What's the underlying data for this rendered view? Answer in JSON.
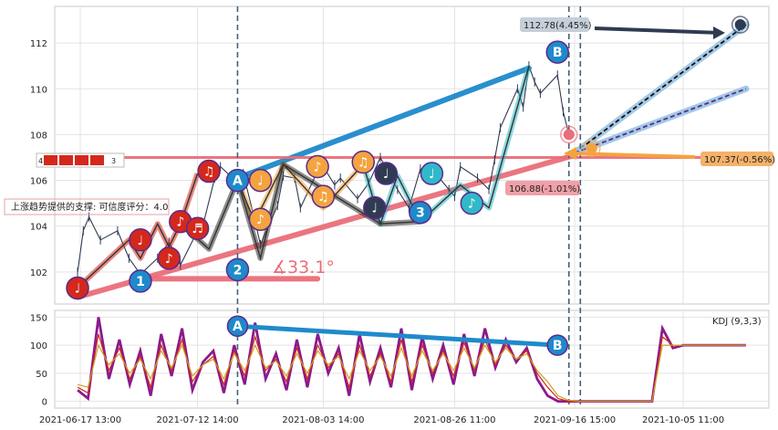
{
  "chart_data": [
    {
      "type": "line",
      "panel": "price",
      "ylim": [
        100.6,
        113.6
      ],
      "yticks": [
        102,
        104,
        106,
        108,
        110,
        112
      ],
      "x_range": [
        "2021-06-17",
        "2021-10-20"
      ],
      "grid": true,
      "series": [
        {
          "role": "price-candles",
          "color": "#2f3b52",
          "points": [
            [
              "2021-06-21",
              102.0
            ],
            [
              "2021-06-22",
              103.8
            ],
            [
              "2021-06-23",
              104.4
            ],
            [
              "2021-06-25",
              103.4
            ],
            [
              "2021-06-28",
              103.8
            ],
            [
              "2021-06-30",
              102.6
            ],
            [
              "2021-07-02",
              101.9
            ],
            [
              "2021-07-05",
              102.6
            ],
            [
              "2021-07-07",
              103.3
            ],
            [
              "2021-07-09",
              102.3
            ],
            [
              "2021-07-12",
              103.8
            ],
            [
              "2021-07-13",
              104.1
            ],
            [
              "2021-07-15",
              106.1
            ],
            [
              "2021-07-16",
              106.6
            ],
            [
              "2021-07-19",
              105.9
            ],
            [
              "2021-07-20",
              106.3
            ],
            [
              "2021-07-22",
              104.3
            ],
            [
              "2021-07-23",
              103.2
            ],
            [
              "2021-07-26",
              104.9
            ],
            [
              "2021-07-27",
              106.2
            ],
            [
              "2021-07-29",
              106.1
            ],
            [
              "2021-07-30",
              104.8
            ],
            [
              "2021-08-02",
              106.4
            ],
            [
              "2021-08-03",
              106.6
            ],
            [
              "2021-08-05",
              105.8
            ],
            [
              "2021-08-06",
              106.1
            ],
            [
              "2021-08-09",
              105.2
            ],
            [
              "2021-08-11",
              105.9
            ],
            [
              "2021-08-13",
              107.0
            ],
            [
              "2021-08-16",
              105.6
            ],
            [
              "2021-08-18",
              104.8
            ],
            [
              "2021-08-20",
              106.5
            ],
            [
              "2021-08-23",
              106.2
            ],
            [
              "2021-08-25",
              105.6
            ],
            [
              "2021-08-26",
              105.3
            ],
            [
              "2021-08-27",
              106.6
            ],
            [
              "2021-08-30",
              106.1
            ],
            [
              "2021-09-01",
              105.6
            ],
            [
              "2021-09-02",
              106.9
            ],
            [
              "2021-09-03",
              108.3
            ],
            [
              "2021-09-06",
              110.0
            ],
            [
              "2021-09-07",
              109.2
            ],
            [
              "2021-09-08",
              111.0
            ],
            [
              "2021-09-09",
              110.3
            ],
            [
              "2021-09-10",
              109.8
            ],
            [
              "2021-09-13",
              110.6
            ],
            [
              "2021-09-14",
              109.0
            ],
            [
              "2021-09-15",
              108.0
            ]
          ]
        }
      ],
      "patterns": [
        {
          "type": "zigzag",
          "role": "red-wave",
          "color": "#d4281c",
          "points": [
            [
              "2021-06-21",
              101.3
            ],
            [
              "2021-06-30",
              103.4
            ],
            [
              "2021-07-02",
              102.6
            ],
            [
              "2021-07-05",
              104.1
            ],
            [
              "2021-07-07",
              103.1
            ],
            [
              "2021-07-09",
              104.1
            ],
            [
              "2021-07-12",
              106.3
            ]
          ]
        },
        {
          "type": "zigzag",
          "role": "orange-wave",
          "color": "#f5a340",
          "points": [
            [
              "2021-07-19",
              106.0
            ],
            [
              "2021-07-22",
              104.2
            ],
            [
              "2021-07-27",
              106.7
            ],
            [
              "2021-08-03",
              104.8
            ],
            [
              "2021-08-10",
              106.7
            ]
          ]
        },
        {
          "type": "zigzag",
          "role": "teal-wave",
          "color": "#31b9c9",
          "points": [
            [
              "2021-08-10",
              106.7
            ],
            [
              "2021-08-13",
              104.1
            ],
            [
              "2021-08-16",
              106.2
            ],
            [
              "2021-08-20",
              104.2
            ],
            [
              "2021-08-27",
              105.8
            ],
            [
              "2021-09-01",
              104.8
            ],
            [
              "2021-09-08",
              111.0
            ]
          ]
        },
        {
          "type": "zigzag",
          "role": "main-swing",
          "color": "#333333",
          "points": [
            [
              "2021-07-09",
              104.1
            ],
            [
              "2021-07-14",
              103.0
            ],
            [
              "2021-07-19",
              106.0
            ],
            [
              "2021-07-23",
              102.6
            ],
            [
              "2021-07-27",
              106.7
            ],
            [
              "2021-08-13",
              104.1
            ],
            [
              "2021-08-20",
              104.2
            ]
          ]
        }
      ],
      "trendlines": [
        {
          "role": "resistance",
          "color": "#1f8acb",
          "from": [
            "2021-07-19",
            106.1
          ],
          "to": [
            "2021-09-08",
            110.9
          ]
        },
        {
          "role": "support",
          "color": "#ea6e7a",
          "from": [
            "2021-06-21",
            100.9
          ],
          "to": [
            "2021-09-16",
            107.1
          ]
        },
        {
          "role": "horizontal",
          "color": "#ea6e7a",
          "from": [
            "2021-06-20",
            107.0
          ],
          "to": [
            "2021-10-20",
            107.0
          ]
        },
        {
          "role": "base-line",
          "color": "#ea6e7a",
          "from": [
            "2021-07-03",
            101.7
          ],
          "to": [
            "2021-08-02",
            101.7
          ]
        },
        {
          "role": "projection-up",
          "color": "#9fc7e6",
          "from": [
            "2021-09-16",
            107.2
          ],
          "to": [
            "2021-10-16",
            112.8
          ],
          "dashed": true
        },
        {
          "role": "projection-mid",
          "color": "#9fc7e6",
          "from": [
            "2021-09-16",
            107.2
          ],
          "to": [
            "2021-10-16",
            110.0
          ],
          "dashed": true
        }
      ],
      "vlines": [
        "2021-07-19",
        "2021-09-15",
        "2021-09-17"
      ],
      "markers": [
        {
          "label": "♩",
          "color": "#d4281c",
          "x": "2021-06-21",
          "y": 101.3
        },
        {
          "label": "1",
          "color": "#1f8acb",
          "x": "2021-07-02",
          "y": 101.6
        },
        {
          "label": "♪",
          "color": "#d4281c",
          "x": "2021-07-07",
          "y": 102.6
        },
        {
          "label": "♩",
          "color": "#d4281c",
          "x": "2021-07-02",
          "y": 103.4
        },
        {
          "label": "♪",
          "color": "#d4281c",
          "x": "2021-07-09",
          "y": 104.2
        },
        {
          "label": "♬",
          "color": "#d4281c",
          "x": "2021-07-12",
          "y": 103.9
        },
        {
          "label": "♫",
          "color": "#d4281c",
          "x": "2021-07-14",
          "y": 106.4
        },
        {
          "label": "A",
          "color": "#1f8acb",
          "x": "2021-07-19",
          "y": 106.0
        },
        {
          "label": "2",
          "color": "#1f8acb",
          "x": "2021-07-19",
          "y": 102.1
        },
        {
          "label": "♩",
          "color": "#f5a340",
          "x": "2021-07-23",
          "y": 106.0
        },
        {
          "label": "♪",
          "color": "#f5a340",
          "x": "2021-07-23",
          "y": 104.3
        },
        {
          "label": "♪",
          "color": "#f5a340",
          "x": "2021-08-02",
          "y": 106.6
        },
        {
          "label": "♫",
          "color": "#f5a340",
          "x": "2021-08-03",
          "y": 105.3
        },
        {
          "label": "♫",
          "color": "#f5a340",
          "x": "2021-08-10",
          "y": 106.8
        },
        {
          "label": "♩",
          "color": "#2f3b52",
          "x": "2021-08-12",
          "y": 104.8
        },
        {
          "label": "♩",
          "color": "#2f3b52",
          "x": "2021-08-14",
          "y": 106.3
        },
        {
          "label": "3",
          "color": "#1f8acb",
          "x": "2021-08-20",
          "y": 104.6
        },
        {
          "label": "♩",
          "color": "#31b9c9",
          "x": "2021-08-22",
          "y": 106.3
        },
        {
          "label": "♪",
          "color": "#31b9c9",
          "x": "2021-08-29",
          "y": 105.0
        },
        {
          "label": "B",
          "color": "#1f8acb",
          "x": "2021-09-13",
          "y": 111.6
        }
      ],
      "small_markers": [
        {
          "color": "#ea6e7a",
          "x": "2021-09-15",
          "y": 108.0
        },
        {
          "color": "#f5a340",
          "x": "2021-09-19",
          "y": 107.4
        },
        {
          "color": "#2f3b52",
          "x": "2021-10-15",
          "y": 112.8
        }
      ],
      "annotations": {
        "angle_text": "∡33.1°",
        "support_label": "上涨趋势提供的支撑: 可信度评分：4.0",
        "price_target_high": "112.78(4.45%)",
        "price_target_mid": "107.37(-0.56%)",
        "price_target_low": "106.88(-1.01%)",
        "badge_prefix": "4",
        "badge_suffix": "3"
      }
    },
    {
      "type": "line",
      "panel": "indicator",
      "legend": "KDJ (9,3,3)",
      "ylim": [
        -12,
        162
      ],
      "yticks": [
        0,
        50,
        100,
        150
      ],
      "series": [
        {
          "role": "J",
          "color": "#8b1a8b",
          "values": [
            20,
            5,
            150,
            40,
            110,
            30,
            90,
            10,
            120,
            45,
            130,
            20,
            70,
            90,
            15,
            100,
            30,
            140,
            40,
            85,
            20,
            110,
            25,
            120,
            50,
            95,
            10,
            120,
            35,
            95,
            25,
            130,
            20,
            115,
            40,
            100,
            30,
            120,
            45,
            130,
            60,
            110,
            70,
            95,
            40,
            10,
            0,
            0,
            0,
            0,
            0,
            0,
            0,
            0,
            0,
            0,
            130,
            95,
            100,
            100,
            100,
            100,
            100,
            100,
            100
          ]
        },
        {
          "role": "K",
          "color": "#d4281c",
          "values": [
            25,
            15,
            120,
            55,
            95,
            40,
            80,
            25,
            100,
            55,
            110,
            35,
            65,
            80,
            30,
            90,
            45,
            115,
            55,
            75,
            35,
            95,
            40,
            100,
            60,
            85,
            25,
            100,
            45,
            85,
            35,
            110,
            35,
            100,
            50,
            90,
            45,
            105,
            55,
            110,
            65,
            100,
            75,
            90,
            50,
            25,
            5,
            0,
            0,
            0,
            0,
            0,
            0,
            0,
            0,
            0,
            115,
            100,
            100,
            100,
            100,
            100,
            100,
            100,
            100
          ]
        },
        {
          "role": "D",
          "color": "#c9a227",
          "values": [
            30,
            25,
            100,
            65,
            85,
            50,
            75,
            40,
            90,
            60,
            100,
            45,
            65,
            75,
            40,
            85,
            55,
            100,
            60,
            72,
            45,
            85,
            50,
            90,
            65,
            80,
            40,
            90,
            55,
            80,
            45,
            95,
            45,
            90,
            55,
            85,
            55,
            95,
            60,
            100,
            70,
            95,
            75,
            85,
            55,
            35,
            10,
            2,
            0,
            0,
            0,
            0,
            0,
            0,
            0,
            0,
            100,
            100,
            100,
            100,
            100,
            100,
            100,
            100,
            100
          ]
        }
      ],
      "trendline": {
        "from_label": "A",
        "to_label": "B",
        "color": "#1f8acb",
        "from_y": 134,
        "to_y": 100
      },
      "x_ticks": [
        "2021-06-17 13:00",
        "2021-07-12 14:00",
        "2021-08-03 14:00",
        "2021-08-26 11:00",
        "2021-09-16 15:00",
        "2021-10-05 11:00"
      ]
    }
  ]
}
